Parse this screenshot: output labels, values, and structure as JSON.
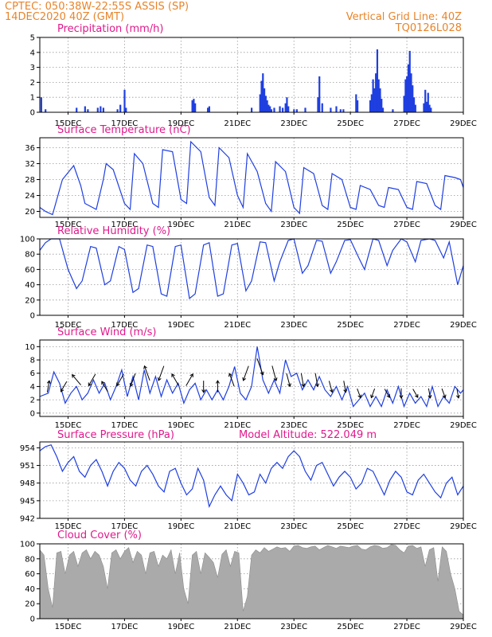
{
  "header": {
    "left_line1": "CPTEC:   050:38W-22:55S   ASSIS (SP)",
    "left_line2": "14DEC2020 40Z (GMT)",
    "right_line1": "Vertical Grid Line: 40Z",
    "right_line2": "TQ0126L028"
  },
  "colors": {
    "header": "#e8842a",
    "title": "#e0198c",
    "series": "#1f3fe0",
    "cloud": "#aaaaaa",
    "arrow": "#000000"
  },
  "x_axis": {
    "tick_labels": [
      "15DEC",
      "17DEC",
      "19DEC",
      "21DEC",
      "23DEC",
      "25DEC",
      "27DEC",
      "29DEC"
    ],
    "tick_days": [
      15,
      17,
      19,
      21,
      23,
      25,
      27,
      29
    ],
    "range_days": [
      14.0,
      29.0
    ]
  },
  "chart_data": [
    {
      "type": "bar",
      "title": "Precipitation (mm/h)",
      "ylim": [
        0,
        5
      ],
      "yticks": [
        0,
        1,
        2,
        3,
        4,
        5
      ],
      "x": [
        14.05,
        14.2,
        15.3,
        15.6,
        15.7,
        16.05,
        16.15,
        16.25,
        16.75,
        16.85,
        17.0,
        17.05,
        19.4,
        19.45,
        19.5,
        19.95,
        20.0,
        21.5,
        21.8,
        21.85,
        21.9,
        21.95,
        22.0,
        22.05,
        22.1,
        22.15,
        22.2,
        22.3,
        22.5,
        22.6,
        22.7,
        22.75,
        22.8,
        23.0,
        23.1,
        23.4,
        23.85,
        23.9,
        24.0,
        24.3,
        24.5,
        24.65,
        24.75,
        25.2,
        25.25,
        25.7,
        25.75,
        25.8,
        25.85,
        25.9,
        25.95,
        26.0,
        26.05,
        26.1,
        26.15,
        26.5,
        26.9,
        26.95,
        27.0,
        27.05,
        27.1,
        27.15,
        27.2,
        27.25,
        27.3,
        27.6,
        27.65,
        27.7,
        27.75,
        27.8,
        27.85
      ],
      "values": [
        1.0,
        0.2,
        0.3,
        0.4,
        0.2,
        0.3,
        0.4,
        0.3,
        0.2,
        0.5,
        1.5,
        0.3,
        0.8,
        0.9,
        0.6,
        0.3,
        0.4,
        0.3,
        1.2,
        2.1,
        2.6,
        1.6,
        1.1,
        0.8,
        0.5,
        0.4,
        0.2,
        0.3,
        0.4,
        0.3,
        0.6,
        1.0,
        0.4,
        0.2,
        0.2,
        0.3,
        1.0,
        2.4,
        0.6,
        0.3,
        0.4,
        0.2,
        0.2,
        1.2,
        0.8,
        0.8,
        1.2,
        2.2,
        1.6,
        2.6,
        4.2,
        2.2,
        1.6,
        0.9,
        0.3,
        0.2,
        1.1,
        2.2,
        2.4,
        3.2,
        4.1,
        2.6,
        1.8,
        1.0,
        0.5,
        0.6,
        1.5,
        0.7,
        1.3,
        0.5,
        0.3
      ]
    },
    {
      "type": "line",
      "title": "Surface Temperature (nC)",
      "ylim": [
        18.5,
        38.5
      ],
      "yticks": [
        20,
        24,
        28,
        32,
        36
      ],
      "x": [
        14.0,
        14.2,
        14.45,
        14.8,
        15.2,
        15.45,
        15.6,
        16.0,
        16.25,
        16.35,
        16.6,
        17.0,
        17.2,
        17.35,
        17.65,
        18.0,
        18.2,
        18.35,
        18.7,
        19.0,
        19.2,
        19.35,
        19.7,
        20.0,
        20.2,
        20.35,
        20.7,
        21.0,
        21.2,
        21.35,
        21.7,
        22.0,
        22.2,
        22.35,
        22.7,
        23.0,
        23.2,
        23.35,
        23.7,
        24.0,
        24.2,
        24.35,
        24.7,
        25.0,
        25.2,
        25.35,
        25.7,
        26.0,
        26.2,
        26.35,
        26.7,
        27.0,
        27.2,
        27.35,
        27.7,
        28.0,
        28.2,
        28.35,
        28.7,
        28.9,
        29.0
      ],
      "values": [
        21.0,
        20.0,
        19.2,
        28.0,
        31.5,
        26.5,
        22.0,
        20.5,
        28.0,
        32.0,
        30.5,
        22.0,
        20.5,
        34.5,
        32.0,
        22.0,
        21.0,
        35.5,
        35.0,
        23.0,
        22.0,
        37.5,
        35.0,
        23.5,
        21.5,
        36.0,
        33.5,
        24.0,
        21.0,
        34.5,
        30.0,
        22.0,
        20.0,
        32.5,
        30.0,
        21.0,
        19.5,
        31.0,
        29.5,
        21.5,
        20.5,
        29.5,
        28.0,
        21.0,
        20.5,
        26.5,
        25.5,
        21.5,
        21.0,
        26.0,
        25.5,
        21.0,
        20.5,
        27.5,
        27.0,
        21.5,
        20.5,
        29.0,
        28.5,
        28.0,
        26.0
      ]
    },
    {
      "type": "line",
      "title": "Relative Humidity (%)",
      "ylim": [
        0,
        100
      ],
      "yticks": [
        0,
        20,
        40,
        60,
        80,
        100
      ],
      "x": [
        14.0,
        14.2,
        14.4,
        14.7,
        15.0,
        15.3,
        15.5,
        15.8,
        16.0,
        16.3,
        16.5,
        16.8,
        17.0,
        17.3,
        17.5,
        17.8,
        18.0,
        18.3,
        18.5,
        18.8,
        19.0,
        19.3,
        19.5,
        19.8,
        20.0,
        20.3,
        20.5,
        20.8,
        21.0,
        21.3,
        21.5,
        21.8,
        22.0,
        22.3,
        22.5,
        22.8,
        23.0,
        23.3,
        23.5,
        23.8,
        24.0,
        24.3,
        24.5,
        24.8,
        25.0,
        25.3,
        25.5,
        25.8,
        26.0,
        26.3,
        26.5,
        26.8,
        27.0,
        27.3,
        27.5,
        27.8,
        28.0,
        28.3,
        28.5,
        28.8,
        29.0
      ],
      "values": [
        85,
        95,
        100,
        100,
        60,
        35,
        45,
        90,
        88,
        40,
        45,
        90,
        86,
        30,
        35,
        92,
        90,
        28,
        25,
        90,
        92,
        22,
        28,
        92,
        95,
        25,
        28,
        92,
        94,
        32,
        45,
        96,
        95,
        45,
        70,
        98,
        100,
        55,
        65,
        98,
        97,
        55,
        70,
        98,
        99,
        75,
        60,
        100,
        98,
        65,
        85,
        100,
        96,
        70,
        98,
        100,
        98,
        75,
        96,
        40,
        65
      ]
    },
    {
      "type": "line",
      "title": "Surface Wind (m/s)",
      "ylim": [
        -0.5,
        11
      ],
      "yticks": [
        0,
        2,
        4,
        6,
        8,
        10
      ],
      "x": [
        14.0,
        14.3,
        14.5,
        14.7,
        14.9,
        15.1,
        15.3,
        15.5,
        15.7,
        15.9,
        16.1,
        16.3,
        16.5,
        16.7,
        16.9,
        17.1,
        17.3,
        17.5,
        17.7,
        17.9,
        18.1,
        18.3,
        18.5,
        18.7,
        18.9,
        19.1,
        19.3,
        19.5,
        19.7,
        19.9,
        20.1,
        20.3,
        20.5,
        20.7,
        20.9,
        21.1,
        21.3,
        21.5,
        21.7,
        21.9,
        22.1,
        22.3,
        22.5,
        22.7,
        22.9,
        23.1,
        23.3,
        23.5,
        23.7,
        23.9,
        24.1,
        24.3,
        24.5,
        24.7,
        24.9,
        25.1,
        25.3,
        25.5,
        25.7,
        25.9,
        26.1,
        26.3,
        26.5,
        26.7,
        26.9,
        27.1,
        27.3,
        27.5,
        27.7,
        27.9,
        28.1,
        28.3,
        28.5,
        28.7,
        28.9,
        29.0
      ],
      "values": [
        2.5,
        3.0,
        6.2,
        4.5,
        1.5,
        3.0,
        4.0,
        2.0,
        3.0,
        5.0,
        3.0,
        4.5,
        2.0,
        4.0,
        6.5,
        2.5,
        5.5,
        2.0,
        6.5,
        3.0,
        5.5,
        2.5,
        5.0,
        3.0,
        4.5,
        1.5,
        3.5,
        4.5,
        2.0,
        3.5,
        2.0,
        3.5,
        2.0,
        4.0,
        7.0,
        3.0,
        2.0,
        4.0,
        10.0,
        5.0,
        3.0,
        5.0,
        3.0,
        8.0,
        5.5,
        6.0,
        3.5,
        5.0,
        3.5,
        5.5,
        3.5,
        2.5,
        4.0,
        2.0,
        4.0,
        1.0,
        2.0,
        3.0,
        1.0,
        2.5,
        1.0,
        3.5,
        1.5,
        4.0,
        1.0,
        3.0,
        1.5,
        2.5,
        1.0,
        4.0,
        1.0,
        2.5,
        1.5,
        4.0,
        3.0,
        3.5
      ],
      "arrows": {
        "x": [
          14.3,
          14.85,
          15.3,
          15.85,
          16.3,
          16.85,
          17.3,
          17.8,
          18.3,
          18.8,
          19.3,
          19.8,
          20.3,
          20.8,
          21.3,
          21.8,
          22.3,
          22.8,
          23.3,
          23.8,
          24.3,
          24.8,
          25.3,
          25.8,
          26.3,
          26.8,
          27.3,
          27.8,
          28.3,
          28.8
        ],
        "speed": [
          4,
          4,
          5,
          5,
          4,
          5,
          5,
          6,
          6,
          5,
          5,
          4,
          4,
          5,
          6,
          7,
          6,
          5,
          5,
          5,
          4,
          4,
          3,
          3,
          3,
          3,
          3,
          3,
          3,
          3
        ],
        "dir_deg": [
          80,
          -120,
          130,
          -120,
          120,
          -120,
          -110,
          110,
          -110,
          120,
          60,
          -90,
          90,
          110,
          -110,
          -70,
          -75,
          -75,
          -80,
          -80,
          -75,
          -80,
          -70,
          -110,
          -60,
          -90,
          -60,
          -80,
          -70,
          -80
        ]
      }
    },
    {
      "type": "line",
      "title": "Surface Pressure (hPa)",
      "annotation": "Model Altitude: 522.049 m",
      "ylim": [
        942,
        955
      ],
      "yticks": [
        942,
        945,
        948,
        951,
        954
      ],
      "x": [
        14.0,
        14.2,
        14.4,
        14.6,
        14.8,
        15.0,
        15.2,
        15.4,
        15.6,
        15.8,
        16.0,
        16.2,
        16.4,
        16.6,
        16.8,
        17.0,
        17.2,
        17.4,
        17.6,
        17.8,
        18.0,
        18.2,
        18.4,
        18.6,
        18.8,
        19.0,
        19.2,
        19.4,
        19.6,
        19.8,
        20.0,
        20.2,
        20.4,
        20.6,
        20.8,
        21.0,
        21.2,
        21.4,
        21.6,
        21.8,
        22.0,
        22.2,
        22.4,
        22.6,
        22.8,
        23.0,
        23.2,
        23.4,
        23.6,
        23.8,
        24.0,
        24.2,
        24.4,
        24.6,
        24.8,
        25.0,
        25.2,
        25.4,
        25.6,
        25.8,
        26.0,
        26.2,
        26.4,
        26.6,
        26.8,
        27.0,
        27.2,
        27.4,
        27.6,
        27.8,
        28.0,
        28.2,
        28.4,
        28.6,
        28.8,
        29.0
      ],
      "values": [
        953.5,
        954.2,
        954.5,
        952.5,
        950.0,
        951.5,
        952.5,
        950.0,
        949.0,
        951.0,
        952.0,
        950.0,
        947.5,
        950.0,
        951.5,
        950.5,
        948.5,
        947.5,
        950.0,
        951.0,
        949.5,
        947.5,
        946.5,
        950.0,
        950.5,
        948.0,
        946.0,
        947.0,
        950.5,
        948.5,
        944.0,
        946.0,
        947.5,
        946.0,
        945.0,
        949.5,
        948.0,
        946.0,
        946.5,
        949.5,
        948.0,
        950.5,
        951.5,
        950.5,
        952.5,
        953.5,
        952.5,
        950.0,
        948.5,
        951.0,
        951.5,
        949.5,
        947.5,
        949.0,
        950.0,
        949.0,
        947.0,
        948.0,
        950.5,
        950.0,
        948.0,
        946.0,
        948.5,
        950.0,
        949.0,
        946.5,
        946.0,
        948.5,
        949.5,
        948.0,
        946.5,
        945.5,
        948.0,
        949.0,
        946.0,
        947.5
      ]
    },
    {
      "type": "area",
      "title": "Cloud Cover (%)",
      "ylim": [
        0,
        100
      ],
      "yticks": [
        0,
        20,
        40,
        60,
        80,
        100
      ],
      "x": [
        14.0,
        14.15,
        14.3,
        14.45,
        14.6,
        14.75,
        14.9,
        15.05,
        15.2,
        15.35,
        15.5,
        15.65,
        15.8,
        15.95,
        16.1,
        16.25,
        16.4,
        16.55,
        16.7,
        16.85,
        17.0,
        17.15,
        17.3,
        17.45,
        17.6,
        17.75,
        17.9,
        18.05,
        18.2,
        18.35,
        18.5,
        18.65,
        18.8,
        18.95,
        19.1,
        19.25,
        19.4,
        19.55,
        19.7,
        19.85,
        20.0,
        20.15,
        20.3,
        20.45,
        20.6,
        20.75,
        20.9,
        21.05,
        21.2,
        21.35,
        21.5,
        21.65,
        21.8,
        21.95,
        22.1,
        22.25,
        22.4,
        22.55,
        22.7,
        22.85,
        23.0,
        23.15,
        23.3,
        23.45,
        23.6,
        23.75,
        23.9,
        24.05,
        24.2,
        24.35,
        24.5,
        24.65,
        24.8,
        24.95,
        25.1,
        25.25,
        25.4,
        25.55,
        25.7,
        25.85,
        26.0,
        26.15,
        26.3,
        26.45,
        26.6,
        26.75,
        26.9,
        27.05,
        27.2,
        27.35,
        27.5,
        27.65,
        27.8,
        27.95,
        28.1,
        28.25,
        28.4,
        28.55,
        28.7,
        28.85,
        29.0
      ],
      "values": [
        92,
        85,
        40,
        15,
        88,
        90,
        60,
        85,
        90,
        70,
        88,
        92,
        80,
        90,
        85,
        70,
        40,
        88,
        92,
        80,
        90,
        95,
        75,
        90,
        85,
        60,
        88,
        90,
        70,
        85,
        80,
        92,
        60,
        88,
        40,
        20,
        85,
        90,
        60,
        88,
        82,
        75,
        55,
        86,
        92,
        70,
        90,
        88,
        10,
        30,
        85,
        92,
        88,
        95,
        90,
        93,
        96,
        94,
        95,
        90,
        97,
        98,
        95,
        94,
        96,
        97,
        92,
        95,
        98,
        96,
        94,
        97,
        96,
        95,
        97,
        98,
        93,
        92,
        96,
        98,
        97,
        94,
        95,
        99,
        98,
        92,
        88,
        97,
        98,
        94,
        96,
        70,
        92,
        95,
        50,
        96,
        90,
        60,
        40,
        10,
        5
      ]
    }
  ]
}
